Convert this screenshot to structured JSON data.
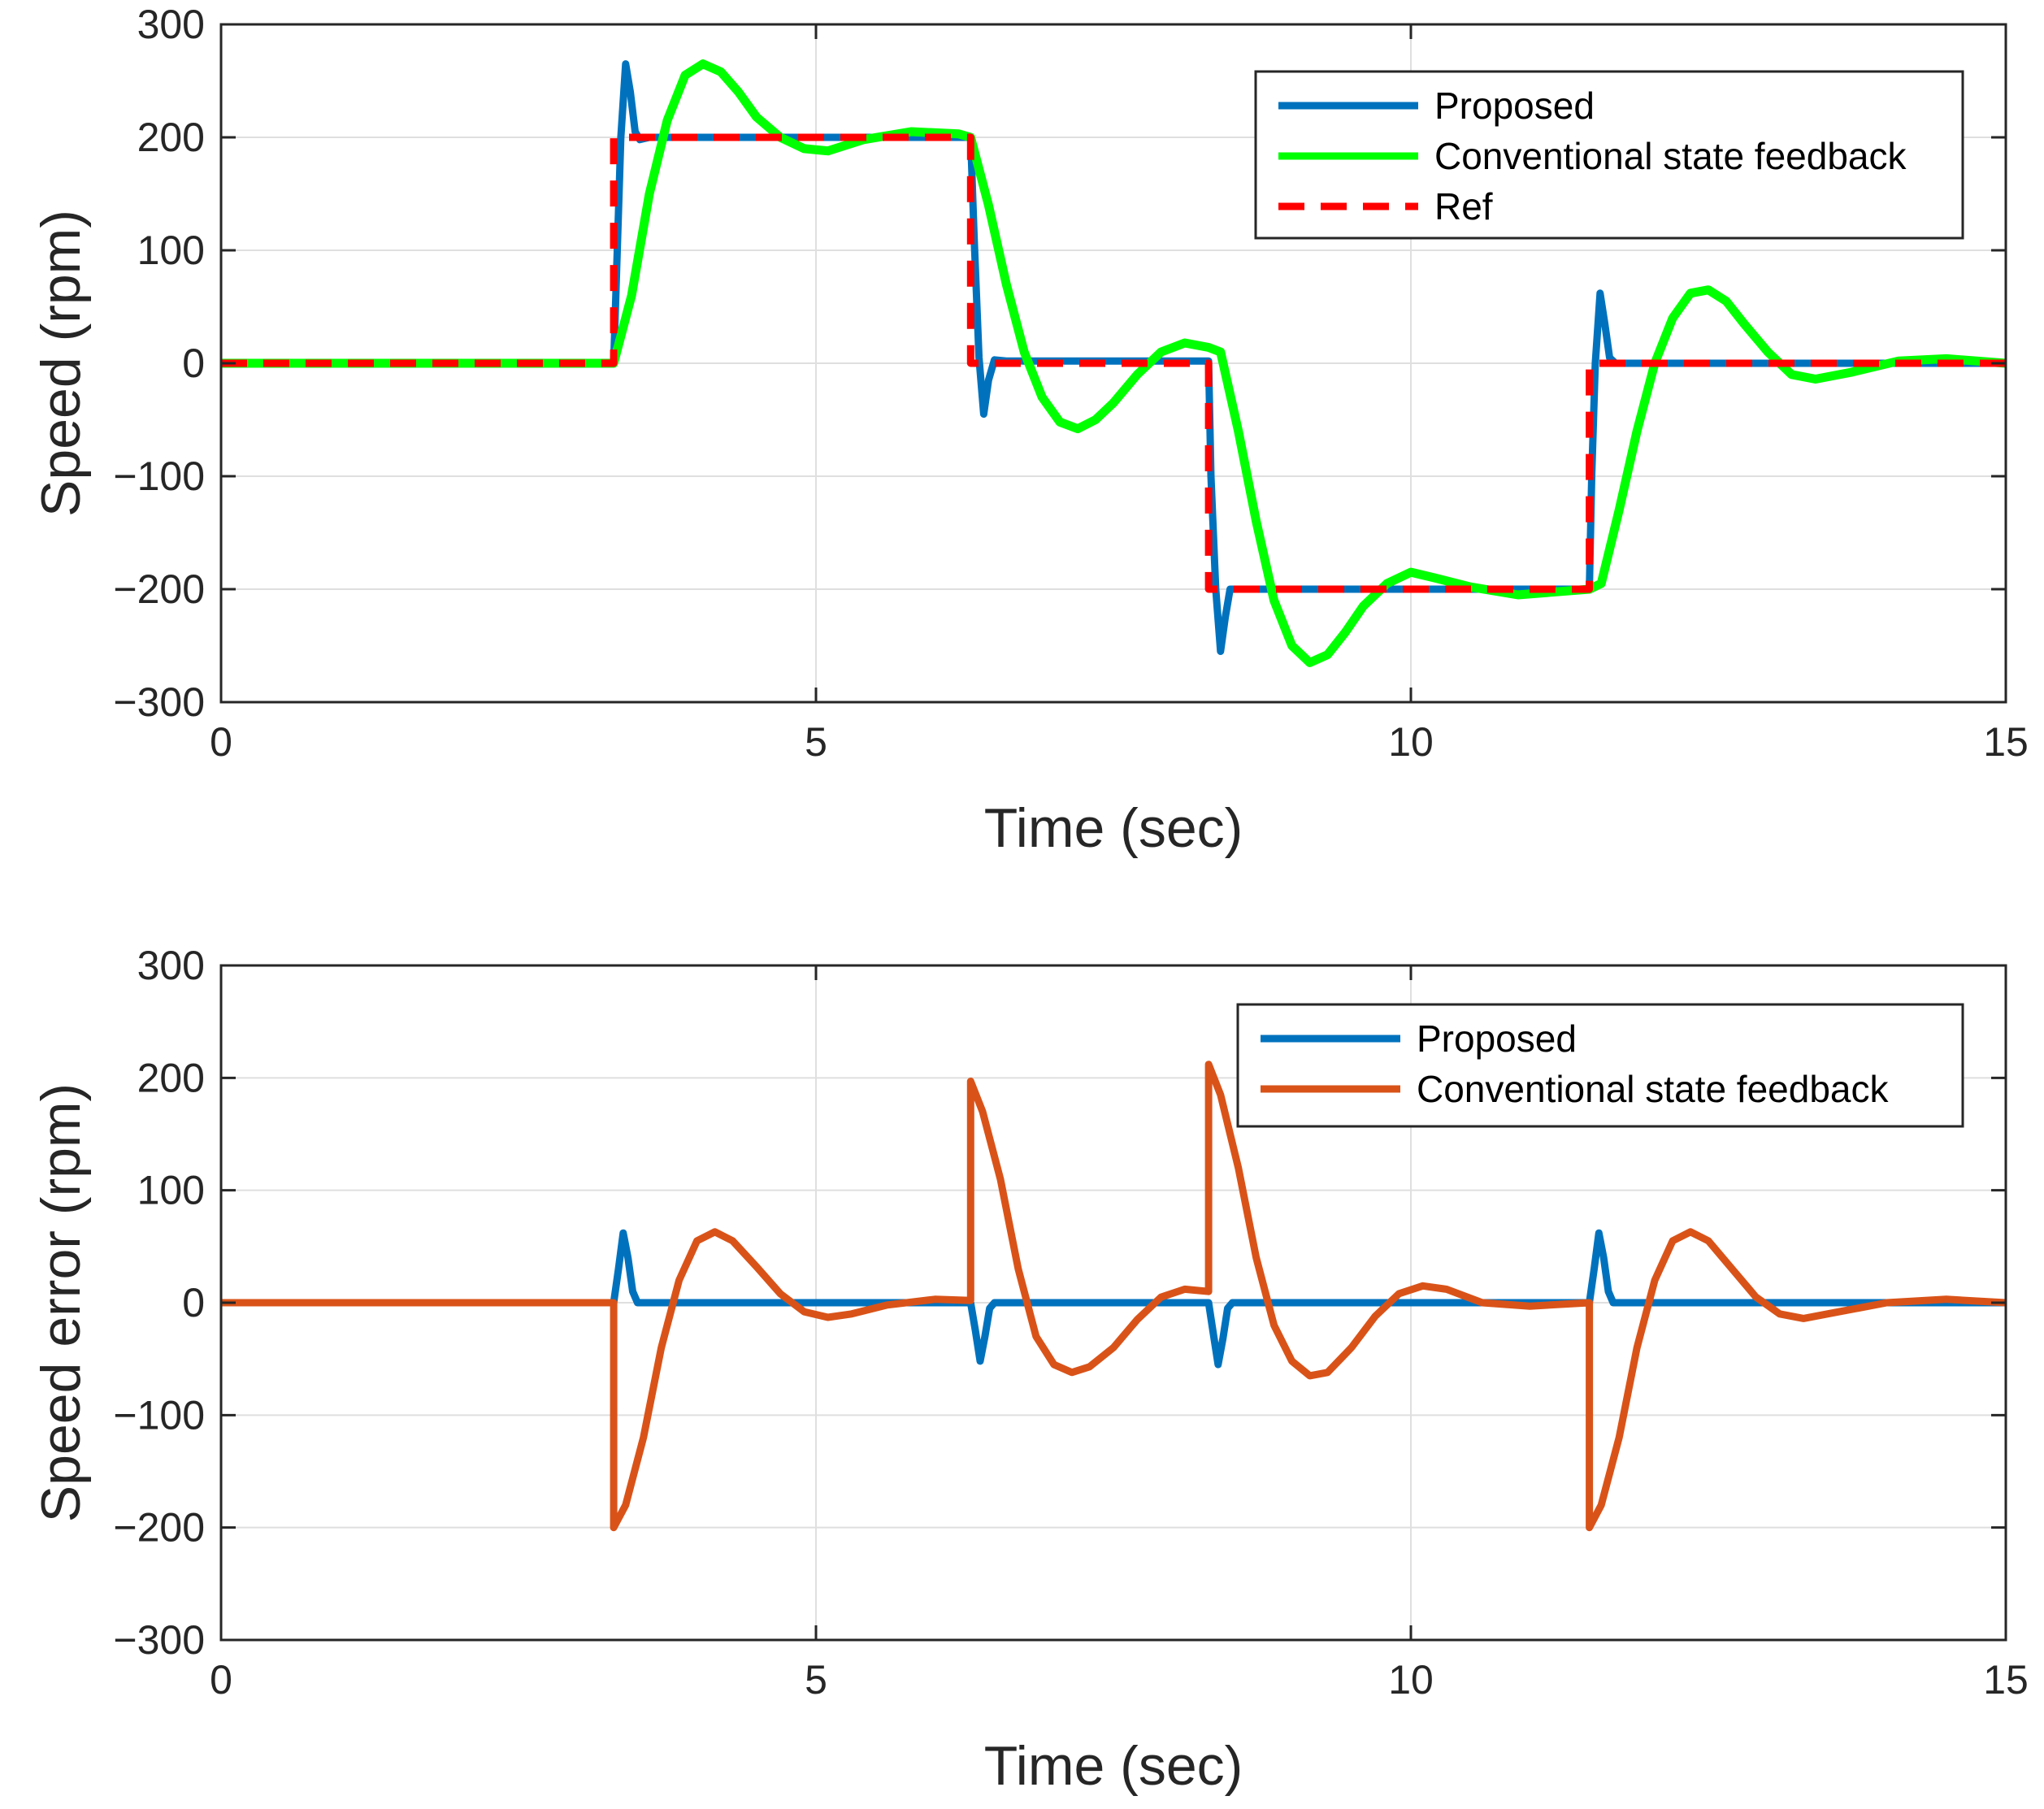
{
  "chart_data": [
    {
      "type": "line",
      "title": "",
      "xlabel": "Time (sec)",
      "ylabel": "Speed (rpm)",
      "xlim": [
        0,
        15
      ],
      "ylim": [
        -300,
        300
      ],
      "xticks": [
        0,
        5,
        10,
        15
      ],
      "yticks": [
        300,
        200,
        100,
        0,
        -100,
        -200,
        -300
      ],
      "ytick_labels": [
        "300",
        "200",
        "100",
        "0",
        "−100",
        "−200",
        "−300"
      ],
      "xtick_labels": [
        "0",
        "5",
        "10",
        "15"
      ],
      "grid": true,
      "legend_position": "top-right",
      "series": [
        {
          "name": "Proposed",
          "color": "#0072BD",
          "style": "solid",
          "x": [
            0,
            3.3,
            3.33,
            3.36,
            3.4,
            3.44,
            3.48,
            3.52,
            3.6,
            6.2,
            6.3,
            6.33,
            6.37,
            6.41,
            6.45,
            6.5,
            6.6,
            8.3,
            8.32,
            8.36,
            8.4,
            8.44,
            8.48,
            8.52,
            8.6,
            11.5,
            11.52,
            11.55,
            11.59,
            11.63,
            11.67,
            11.72,
            11.8,
            15
          ],
          "y": [
            0,
            0,
            100,
            200,
            265,
            240,
            205,
            198,
            200,
            200,
            200,
            110,
            5,
            -45,
            -15,
            3,
            2,
            2,
            -100,
            -200,
            -255,
            -225,
            -200,
            -200,
            -200,
            -200,
            -100,
            0,
            62,
            35,
            5,
            0,
            0,
            0
          ]
        },
        {
          "name": "Conventional state feedback",
          "color": "#00FF00",
          "style": "solid",
          "x": [
            0,
            3.3,
            3.45,
            3.6,
            3.75,
            3.9,
            4.05,
            4.2,
            4.35,
            4.5,
            4.7,
            4.9,
            5.1,
            5.4,
            5.8,
            6.2,
            6.3,
            6.45,
            6.6,
            6.75,
            6.9,
            7.05,
            7.2,
            7.35,
            7.5,
            7.7,
            7.9,
            8.1,
            8.3,
            8.4,
            8.55,
            8.7,
            8.85,
            9.0,
            9.15,
            9.3,
            9.45,
            9.6,
            9.8,
            10.0,
            10.2,
            10.5,
            10.9,
            11.5,
            11.6,
            11.75,
            11.9,
            12.05,
            12.2,
            12.35,
            12.5,
            12.65,
            12.8,
            13.0,
            13.2,
            13.4,
            13.7,
            14.1,
            14.5,
            15
          ],
          "y": [
            0,
            0,
            60,
            150,
            215,
            255,
            265,
            258,
            240,
            218,
            200,
            190,
            188,
            198,
            205,
            203,
            200,
            140,
            70,
            10,
            -30,
            -52,
            -58,
            -50,
            -35,
            -10,
            10,
            18,
            14,
            10,
            -60,
            -140,
            -210,
            -250,
            -265,
            -258,
            -238,
            -215,
            -195,
            -185,
            -190,
            -198,
            -205,
            -200,
            -195,
            -130,
            -60,
            0,
            40,
            62,
            65,
            55,
            35,
            10,
            -10,
            -14,
            -8,
            2,
            4,
            0
          ]
        },
        {
          "name": "Ref",
          "color": "#FF0000",
          "style": "dashed",
          "x": [
            0,
            3.3,
            3.3,
            6.3,
            6.3,
            8.3,
            8.3,
            11.5,
            11.5,
            15
          ],
          "y": [
            0,
            0,
            200,
            200,
            0,
            0,
            -200,
            -200,
            0,
            0
          ]
        }
      ]
    },
    {
      "type": "line",
      "title": "",
      "xlabel": "Time (sec)",
      "ylabel": "Speed error (rpm)",
      "xlim": [
        0,
        15
      ],
      "ylim": [
        -300,
        300
      ],
      "xticks": [
        0,
        5,
        10,
        15
      ],
      "yticks": [
        300,
        200,
        100,
        0,
        -100,
        -200,
        -300
      ],
      "ytick_labels": [
        "300",
        "200",
        "100",
        "0",
        "−100",
        "−200",
        "−300"
      ],
      "xtick_labels": [
        "0",
        "5",
        "10",
        "15"
      ],
      "grid": true,
      "legend_position": "top-right",
      "series": [
        {
          "name": "Proposed",
          "color": "#0072BD",
          "style": "solid",
          "x": [
            0,
            3.3,
            3.34,
            3.38,
            3.42,
            3.46,
            3.5,
            3.55,
            6.3,
            6.34,
            6.38,
            6.42,
            6.46,
            6.5,
            6.55,
            8.3,
            8.34,
            8.38,
            8.42,
            8.46,
            8.5,
            8.55,
            11.5,
            11.54,
            11.58,
            11.62,
            11.66,
            11.7,
            11.75,
            15
          ],
          "y": [
            0,
            0,
            30,
            62,
            40,
            10,
            0,
            0,
            0,
            -25,
            -52,
            -30,
            -5,
            0,
            0,
            0,
            -28,
            -55,
            -32,
            -5,
            0,
            0,
            0,
            30,
            62,
            40,
            10,
            0,
            0,
            0
          ]
        },
        {
          "name": "Conventional state feedback",
          "color": "#D95319",
          "style": "solid",
          "x": [
            0,
            3.3,
            3.3,
            3.4,
            3.55,
            3.7,
            3.85,
            4.0,
            4.15,
            4.3,
            4.5,
            4.7,
            4.9,
            5.1,
            5.3,
            5.6,
            6.0,
            6.3,
            6.3,
            6.4,
            6.55,
            6.7,
            6.85,
            7.0,
            7.15,
            7.3,
            7.5,
            7.7,
            7.9,
            8.1,
            8.3,
            8.3,
            8.4,
            8.55,
            8.7,
            8.85,
            9.0,
            9.15,
            9.3,
            9.5,
            9.7,
            9.9,
            10.1,
            10.3,
            10.6,
            11.0,
            11.5,
            11.5,
            11.6,
            11.75,
            11.9,
            12.05,
            12.2,
            12.35,
            12.5,
            12.7,
            12.9,
            13.1,
            13.3,
            13.6,
            14.0,
            14.5,
            15
          ],
          "y": [
            0,
            0,
            -200,
            -180,
            -120,
            -40,
            20,
            55,
            63,
            55,
            32,
            8,
            -8,
            -13,
            -10,
            -2,
            3,
            2,
            197,
            170,
            110,
            30,
            -30,
            -55,
            -62,
            -57,
            -40,
            -15,
            5,
            12,
            10,
            212,
            185,
            120,
            40,
            -20,
            -52,
            -65,
            -62,
            -40,
            -12,
            8,
            15,
            12,
            0,
            -3,
            0,
            -200,
            -180,
            -120,
            -40,
            20,
            55,
            63,
            55,
            30,
            5,
            -10,
            -14,
            -8,
            0,
            3,
            0
          ]
        }
      ]
    }
  ]
}
